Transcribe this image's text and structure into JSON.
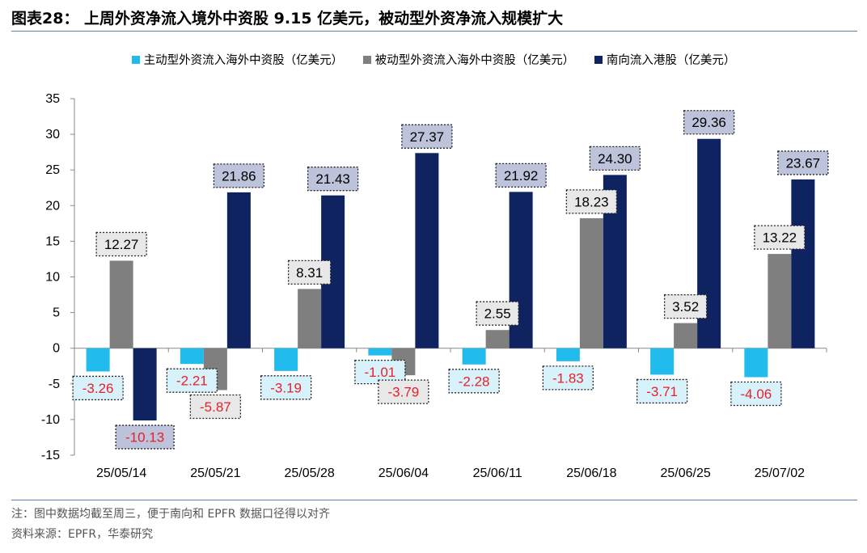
{
  "title": "图表28： 上周外资净流入境外中资股 9.15 亿美元，被动型外资净流入规模扩大",
  "notes": {
    "note": "注：图中数据均截至周三，便于南向和 EPFR 数据口径得以对齐",
    "source": "资料来源：EPFR，华泰研究"
  },
  "chart_data": {
    "type": "bar",
    "title": "上周外资净流入境外中资股 9.15 亿美元，被动型外资净流入规模扩大",
    "xlabel": "",
    "ylabel": "",
    "ylim": [
      -15,
      35
    ],
    "yticks": [
      -15,
      -10,
      -5,
      0,
      5,
      10,
      15,
      20,
      25,
      30,
      35
    ],
    "categories": [
      "25/05/14",
      "25/05/21",
      "25/05/28",
      "25/06/04",
      "25/06/11",
      "25/06/18",
      "25/06/25",
      "25/07/02"
    ],
    "series": [
      {
        "name": "主动型外资流入海外中资股（亿美元）",
        "color": "#22bbee",
        "label_bg": "#d8f2fb",
        "values": [
          -3.26,
          -2.21,
          -3.19,
          -1.01,
          -2.28,
          -1.83,
          -3.71,
          -4.06
        ]
      },
      {
        "name": "被动型外资流入海外中资股（亿美元）",
        "color": "#7f7f7f",
        "label_bg": "#e8e8e8",
        "values": [
          12.27,
          -5.87,
          8.31,
          -3.79,
          2.55,
          18.23,
          3.52,
          13.22
        ]
      },
      {
        "name": "南向流入港股（亿美元）",
        "color": "#0f2361",
        "label_bg": "#bcc3db",
        "values": [
          -10.13,
          21.86,
          21.43,
          27.37,
          21.92,
          24.3,
          29.36,
          23.67
        ]
      }
    ],
    "grid": false,
    "legend_position": "top"
  }
}
